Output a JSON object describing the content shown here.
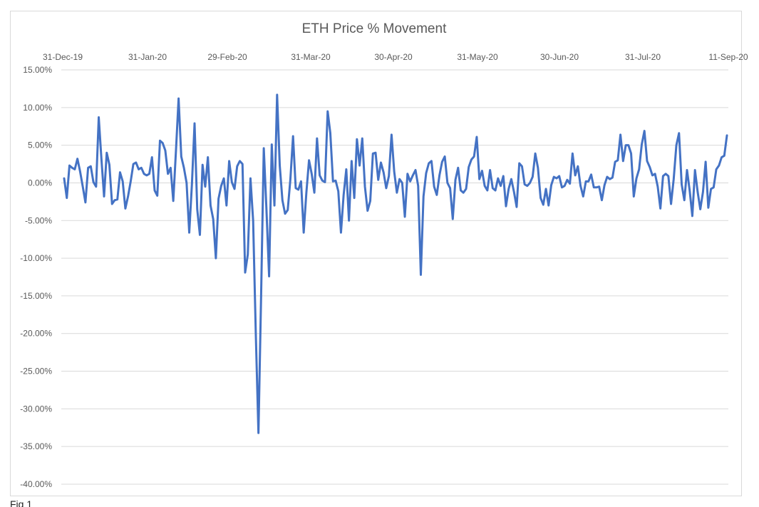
{
  "caption": "Fig 1",
  "chart_data": {
    "type": "line",
    "title": "ETH Price % Movement",
    "xlabel": "",
    "ylabel": "",
    "x_start": "31-Dec-19",
    "x_end": "11-Sep-20",
    "x_tick_labels": [
      "31-Dec-19",
      "31-Jan-20",
      "29-Feb-20",
      "31-Mar-20",
      "30-Apr-20",
      "31-May-20",
      "30-Jun-20",
      "31-Jul-20",
      "11-Sep-20"
    ],
    "y_tick_labels": [
      "15.00%",
      "10.00%",
      "5.00%",
      "0.00%",
      "-5.00%",
      "-10.00%",
      "-15.00%",
      "-20.00%",
      "-25.00%",
      "-30.00%",
      "-35.00%",
      "-40.00%"
    ],
    "ylim": [
      -40,
      15
    ],
    "y_unit": "%",
    "x_axis_position": "top",
    "grid": true,
    "legend": "none",
    "color": "#4472C4",
    "series": [
      {
        "values": [
          0.6,
          -2,
          2.3,
          2,
          1.8,
          3.2,
          1.5,
          -0.5,
          -2.6,
          2,
          2.2,
          0.1,
          -0.5,
          8.7,
          3.2,
          -1.8,
          4,
          2.4,
          -2.8,
          -2.3,
          -2.2,
          1.4,
          0.2,
          -3.4,
          -1.8,
          0.2,
          2.5,
          2.7,
          1.8,
          2,
          1.2,
          1,
          1.2,
          3.4,
          -1,
          -1.7,
          5.6,
          5.3,
          4.3,
          1.2,
          2,
          -2.4,
          4.2,
          11.2,
          3.5,
          2,
          0,
          -6.6,
          -0.2,
          7.9,
          -3.5,
          -6.9,
          2.4,
          -0.5,
          3.4,
          -3,
          -4.8,
          -10,
          -2.1,
          -0.4,
          0.6,
          -3,
          2.9,
          0.1,
          -0.8,
          2.2,
          2.9,
          2.5,
          -11.9,
          -9.5,
          0.6,
          -5,
          -20,
          -33.2,
          -14.9,
          4.6,
          -3.5,
          -12.4,
          5.1,
          -3,
          11.7,
          2.3,
          -2.3,
          -4.1,
          -3.6,
          0.5,
          6.2,
          -0.7,
          -0.9,
          0.2,
          -6.6,
          -1.3,
          3,
          1.2,
          -1.3,
          5.9,
          1,
          0.3,
          0.1,
          9.5,
          6.6,
          0.2,
          0.3,
          -1.1,
          -6.6,
          -1.6,
          1.8,
          -5,
          2.9,
          -2,
          5.8,
          2.3,
          5.9,
          -0.5,
          -3.7,
          -2.4,
          3.9,
          4,
          0.4,
          2.7,
          1.4,
          -0.7,
          0.9,
          6.4,
          1.5,
          -1.3,
          0.5,
          0,
          -4.5,
          1.2,
          0.2,
          1,
          1.7,
          -0.4,
          -12.2,
          -1.8,
          1.3,
          2.6,
          2.9,
          -0.5,
          -1.6,
          1,
          2.8,
          3.5,
          0,
          -0.7,
          -4.8,
          0.4,
          2,
          -1,
          -1.3,
          -0.8,
          2.1,
          3.1,
          3.5,
          6.1,
          0.5,
          1.6,
          -0.4,
          -1,
          1.7,
          -0.7,
          -1,
          0.6,
          -0.4,
          0.9,
          -3.1,
          -0.8,
          0.5,
          -1.2,
          -3.2,
          2.6,
          2.2,
          -0.2,
          -0.4,
          0,
          0.8,
          3.9,
          2,
          -2,
          -2.9,
          -0.8,
          -3,
          -0.3,
          0.8,
          0.6,
          0.9,
          -0.6,
          -0.4,
          0.4,
          -0.1,
          3.9,
          1,
          2.2,
          -0.4,
          -1.8,
          0.2,
          0.2,
          1.1,
          -0.6,
          -0.6,
          -0.5,
          -2.3,
          -0.3,
          0.8,
          0.5,
          0.7,
          2.8,
          3,
          6.4,
          2.9,
          5,
          5,
          3.9,
          -1.8,
          0.6,
          1.8,
          5.1,
          6.9,
          2.9,
          2.1,
          1,
          1.2,
          -0.5,
          -3.4,
          0.9,
          1.2,
          0.9,
          -2.8,
          0.5,
          5,
          6.6,
          -0.2,
          -2.3,
          1.7,
          -1,
          -4.4,
          1.7,
          -1.2,
          -3.5,
          -1.2,
          2.8,
          -3.3,
          -0.8,
          -0.6,
          1.8,
          2.3,
          3.4,
          3.6,
          6.3
        ]
      }
    ]
  }
}
